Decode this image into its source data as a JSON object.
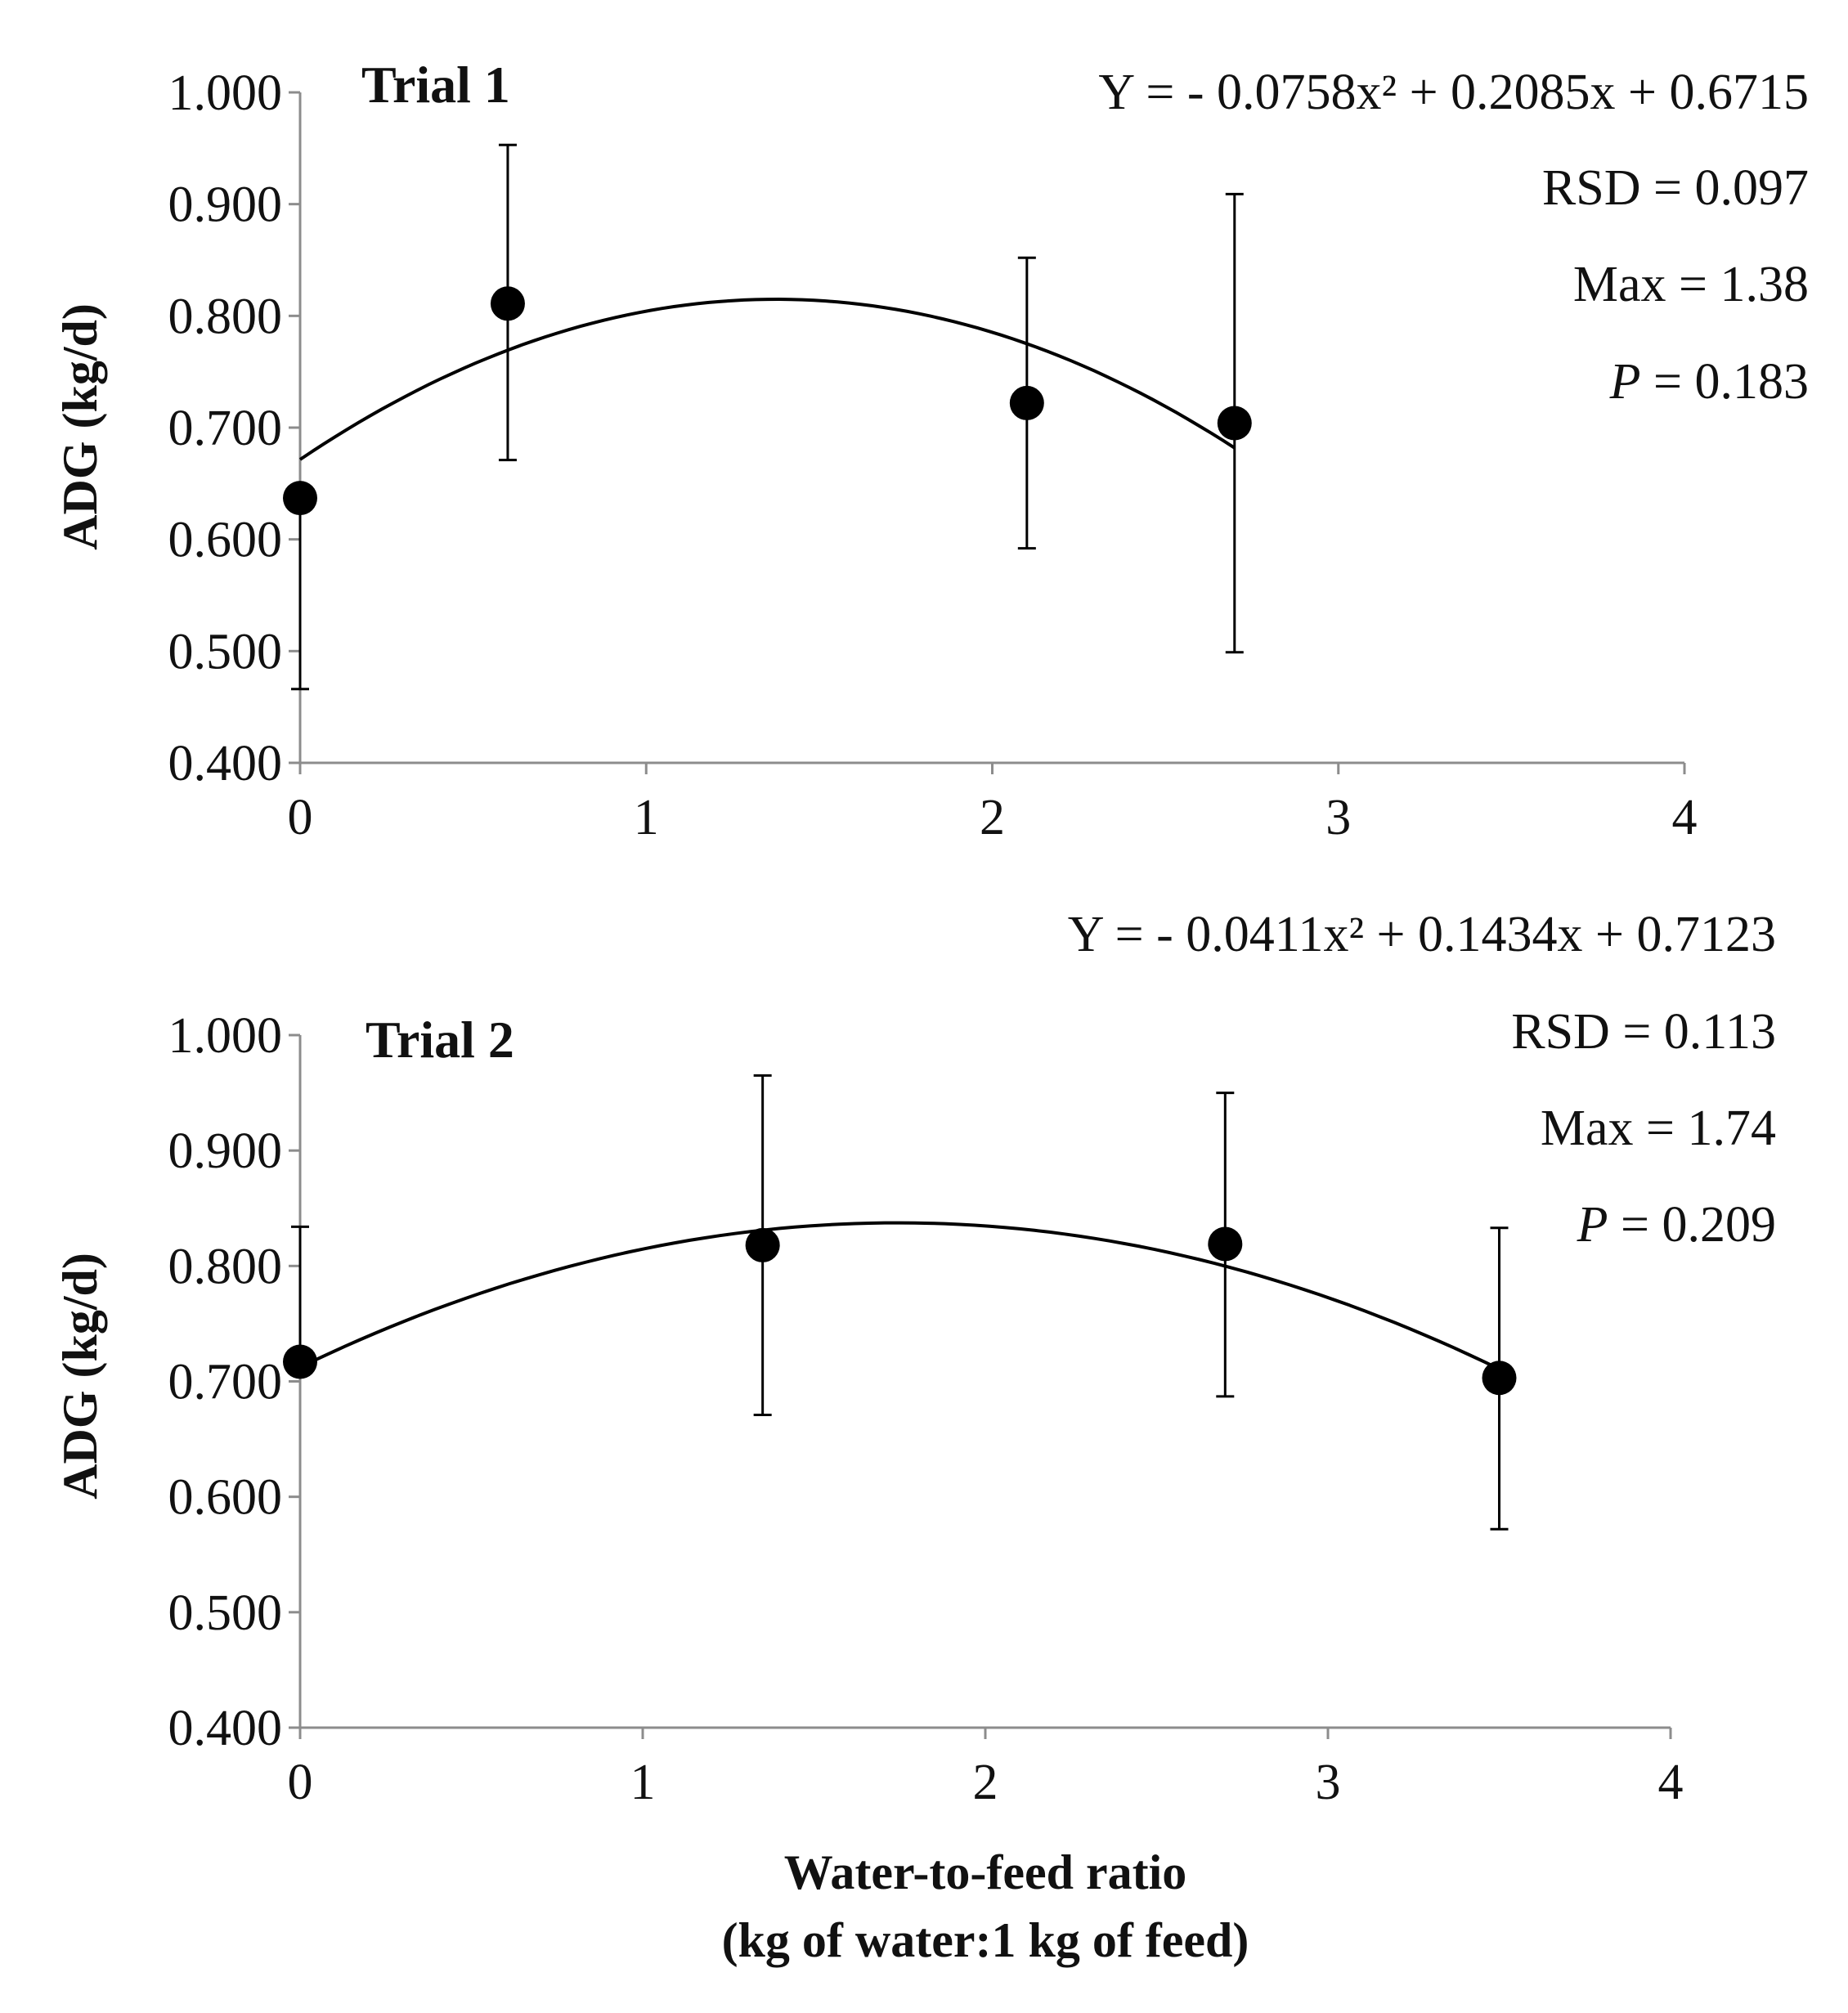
{
  "chart_data": [
    {
      "type": "scatter",
      "title": "Trial 1",
      "xlabel": "",
      "ylabel": "ADG (kg/d)",
      "xlim": [
        0,
        4
      ],
      "ylim": [
        0.4,
        1.0
      ],
      "xticks": [
        "0",
        "1",
        "2",
        "3",
        "4"
      ],
      "yticks": [
        "0.400",
        "0.500",
        "0.600",
        "0.700",
        "0.800",
        "0.900",
        "1.000"
      ],
      "points": [
        {
          "x": 0,
          "y": 0.637,
          "err_low": 0.466,
          "err_high": 0.637
        },
        {
          "x": 0.6,
          "y": 0.811,
          "err_low": 0.671,
          "err_high": 0.953
        },
        {
          "x": 2.1,
          "y": 0.722,
          "err_low": 0.592,
          "err_high": 0.852
        },
        {
          "x": 2.7,
          "y": 0.704,
          "err_low": 0.499,
          "err_high": 0.909
        }
      ],
      "fit": {
        "a": -0.0758,
        "b": 0.2085,
        "c": 0.6715,
        "x_range": [
          0,
          2.7
        ]
      },
      "annotations": {
        "equation": "Y = - 0.0758x² + 0.2085x + 0.6715",
        "rsd": "RSD = 0.097",
        "max": "Max = 1.38",
        "p_label": "P",
        "p_value": " = 0.183"
      }
    },
    {
      "type": "scatter",
      "title": "Trial 2",
      "xlabel": "Water-to-feed ratio",
      "xlabel2": "(kg of water:1 kg of feed)",
      "ylabel": "ADG (kg/d)",
      "xlim": [
        0,
        4
      ],
      "ylim": [
        0.4,
        1.0
      ],
      "xticks": [
        "0",
        "1",
        "2",
        "3",
        "4"
      ],
      "yticks": [
        "0.400",
        "0.500",
        "0.600",
        "0.700",
        "0.800",
        "0.900",
        "1.000"
      ],
      "points": [
        {
          "x": 0,
          "y": 0.717,
          "err_low": 0.717,
          "err_high": 0.834
        },
        {
          "x": 1.35,
          "y": 0.818,
          "err_low": 0.671,
          "err_high": 0.965
        },
        {
          "x": 2.7,
          "y": 0.819,
          "err_low": 0.687,
          "err_high": 0.95
        },
        {
          "x": 3.5,
          "y": 0.703,
          "err_low": 0.572,
          "err_high": 0.833
        }
      ],
      "fit": {
        "a": -0.0411,
        "b": 0.1434,
        "c": 0.7123,
        "x_range": [
          0,
          3.5
        ]
      },
      "annotations": {
        "equation": "Y = - 0.0411x² + 0.1434x + 0.7123",
        "rsd": "RSD = 0.113",
        "max": "Max = 1.74",
        "p_label": "P",
        "p_value": " = 0.209"
      }
    }
  ]
}
